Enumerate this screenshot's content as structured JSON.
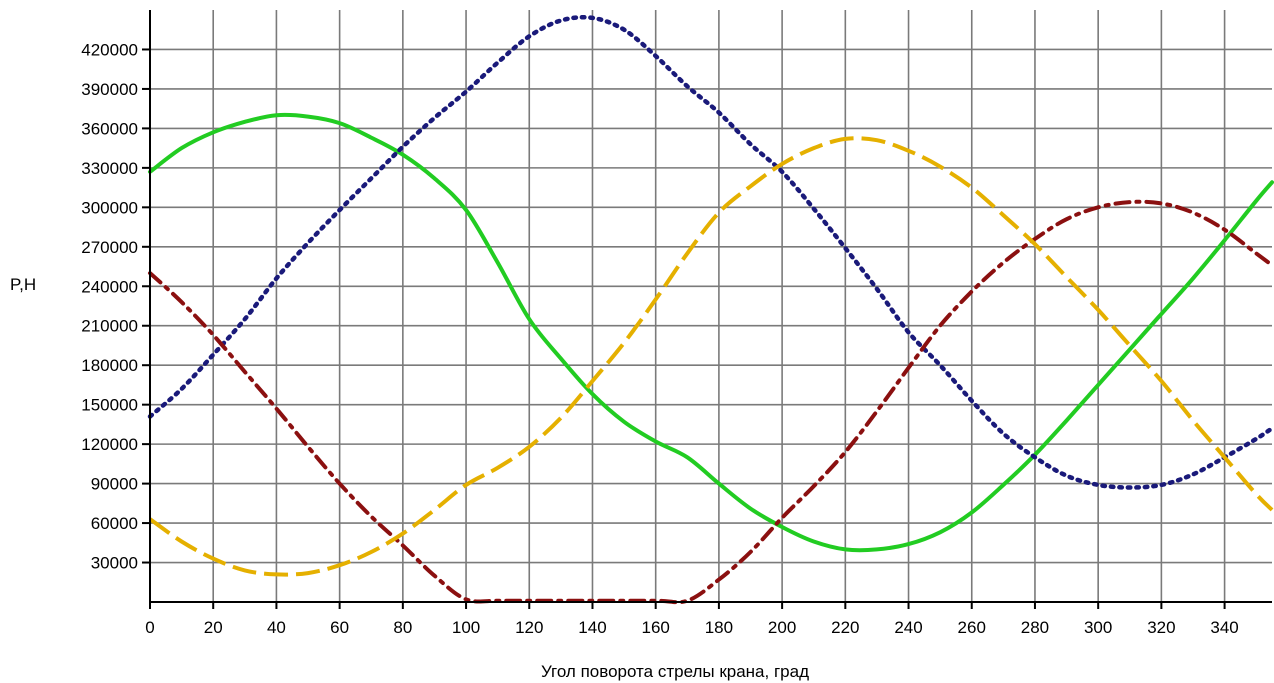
{
  "chart_data": {
    "type": "line",
    "title": "",
    "xlabel": "Угол поворота стрелы крана, град",
    "ylabel": "P,Н",
    "xlim": [
      0,
      355
    ],
    "ylim": [
      0,
      450000
    ],
    "grid": true,
    "x_ticks": [
      0,
      20,
      40,
      60,
      80,
      100,
      120,
      140,
      160,
      180,
      200,
      220,
      240,
      260,
      280,
      300,
      320,
      340
    ],
    "x_tick_labels": [
      "0",
      "20",
      "40",
      "60",
      "80",
      "100",
      "120",
      "140",
      "160",
      "180",
      "200",
      "220",
      "240",
      "260",
      "280",
      "300",
      "320",
      "340"
    ],
    "y_ticks": [
      30000,
      60000,
      90000,
      120000,
      150000,
      180000,
      210000,
      240000,
      270000,
      300000,
      330000,
      360000,
      390000,
      420000
    ],
    "y_tick_labels": [
      "30000",
      "60000",
      "90000",
      "120000",
      "150000",
      "180000",
      "210000",
      "240000",
      "270000",
      "300000",
      "330000",
      "360000",
      "390000",
      "420000"
    ],
    "series": [
      {
        "color": "#22cc22",
        "style": "solid",
        "points": [
          [
            0,
            327000
          ],
          [
            10,
            345000
          ],
          [
            20,
            357000
          ],
          [
            30,
            365000
          ],
          [
            40,
            370000
          ],
          [
            50,
            369000
          ],
          [
            60,
            364000
          ],
          [
            70,
            353000
          ],
          [
            80,
            340000
          ],
          [
            90,
            322000
          ],
          [
            100,
            298000
          ],
          [
            110,
            258000
          ],
          [
            120,
            215000
          ],
          [
            130,
            185000
          ],
          [
            140,
            158000
          ],
          [
            150,
            137000
          ],
          [
            160,
            122000
          ],
          [
            170,
            110000
          ],
          [
            180,
            90000
          ],
          [
            190,
            71000
          ],
          [
            200,
            57000
          ],
          [
            210,
            46000
          ],
          [
            220,
            40000
          ],
          [
            230,
            40000
          ],
          [
            240,
            44000
          ],
          [
            250,
            53000
          ],
          [
            260,
            68000
          ],
          [
            270,
            89000
          ],
          [
            280,
            112000
          ],
          [
            290,
            138000
          ],
          [
            300,
            165000
          ],
          [
            310,
            192000
          ],
          [
            320,
            219000
          ],
          [
            330,
            246000
          ],
          [
            340,
            275000
          ],
          [
            350,
            305000
          ],
          [
            355,
            319000
          ]
        ]
      },
      {
        "color": "#1a1a7a",
        "style": "dotted",
        "points": [
          [
            0,
            141000
          ],
          [
            10,
            162000
          ],
          [
            20,
            188000
          ],
          [
            30,
            215000
          ],
          [
            40,
            246000
          ],
          [
            50,
            273000
          ],
          [
            60,
            298000
          ],
          [
            70,
            322000
          ],
          [
            80,
            346000
          ],
          [
            90,
            368000
          ],
          [
            100,
            388000
          ],
          [
            110,
            410000
          ],
          [
            120,
            430000
          ],
          [
            130,
            442000
          ],
          [
            140,
            444000
          ],
          [
            150,
            435000
          ],
          [
            160,
            415000
          ],
          [
            170,
            392000
          ],
          [
            180,
            372000
          ],
          [
            190,
            348000
          ],
          [
            200,
            327000
          ],
          [
            210,
            299000
          ],
          [
            220,
            269000
          ],
          [
            230,
            238000
          ],
          [
            240,
            205000
          ],
          [
            250,
            180000
          ],
          [
            260,
            153000
          ],
          [
            270,
            128000
          ],
          [
            280,
            110000
          ],
          [
            290,
            96000
          ],
          [
            300,
            89000
          ],
          [
            310,
            87000
          ],
          [
            320,
            89000
          ],
          [
            330,
            97000
          ],
          [
            340,
            110000
          ],
          [
            350,
            124000
          ],
          [
            355,
            132000
          ]
        ]
      },
      {
        "color": "#8b1010",
        "style": "dashdot",
        "points": [
          [
            0,
            250000
          ],
          [
            10,
            228000
          ],
          [
            20,
            203000
          ],
          [
            30,
            175000
          ],
          [
            40,
            147000
          ],
          [
            50,
            118000
          ],
          [
            60,
            90000
          ],
          [
            70,
            65000
          ],
          [
            80,
            43000
          ],
          [
            90,
            20000
          ],
          [
            100,
            2000
          ],
          [
            110,
            1000
          ],
          [
            120,
            1000
          ],
          [
            140,
            1000
          ],
          [
            160,
            1000
          ],
          [
            170,
            1000
          ],
          [
            180,
            17000
          ],
          [
            190,
            38000
          ],
          [
            200,
            64000
          ],
          [
            210,
            88000
          ],
          [
            220,
            114000
          ],
          [
            230,
            145000
          ],
          [
            240,
            178000
          ],
          [
            250,
            210000
          ],
          [
            260,
            236000
          ],
          [
            270,
            258000
          ],
          [
            280,
            276000
          ],
          [
            290,
            291000
          ],
          [
            300,
            300000
          ],
          [
            310,
            304000
          ],
          [
            320,
            303000
          ],
          [
            330,
            296000
          ],
          [
            340,
            283000
          ],
          [
            350,
            265000
          ],
          [
            355,
            256000
          ]
        ]
      },
      {
        "color": "#e5b000",
        "style": "dashed",
        "points": [
          [
            0,
            63000
          ],
          [
            10,
            46000
          ],
          [
            20,
            33000
          ],
          [
            30,
            24000
          ],
          [
            40,
            21000
          ],
          [
            50,
            22000
          ],
          [
            60,
            28000
          ],
          [
            70,
            38000
          ],
          [
            80,
            52000
          ],
          [
            90,
            70000
          ],
          [
            100,
            89000
          ],
          [
            110,
            102000
          ],
          [
            120,
            118000
          ],
          [
            130,
            140000
          ],
          [
            140,
            168000
          ],
          [
            150,
            197000
          ],
          [
            160,
            230000
          ],
          [
            170,
            265000
          ],
          [
            180,
            296000
          ],
          [
            190,
            316000
          ],
          [
            200,
            333000
          ],
          [
            210,
            345000
          ],
          [
            220,
            352000
          ],
          [
            230,
            351000
          ],
          [
            240,
            343000
          ],
          [
            250,
            331000
          ],
          [
            260,
            315000
          ],
          [
            270,
            294000
          ],
          [
            280,
            272000
          ],
          [
            290,
            247000
          ],
          [
            300,
            222000
          ],
          [
            310,
            195000
          ],
          [
            320,
            168000
          ],
          [
            330,
            138000
          ],
          [
            340,
            110000
          ],
          [
            350,
            82000
          ],
          [
            355,
            70000
          ]
        ]
      }
    ]
  }
}
